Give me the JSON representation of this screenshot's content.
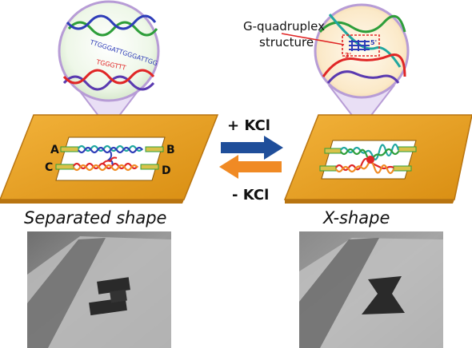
{
  "labels": {
    "plus_kcl": "+ KCl",
    "minus_kcl": "- KCl",
    "left_caption": "Separated shape",
    "right_caption": "X-shape",
    "gq_line1": "G-quadruplex",
    "gq_line2": "structure",
    "corner_a": "A",
    "corner_b": "B",
    "corner_c": "C",
    "corner_d": "D",
    "prime3": "3'",
    "prime5": "5'",
    "seq_top": "TTGGGATTGGGATTGG",
    "seq_bottom": "TGGGTTT"
  },
  "colors": {
    "frame_orange": "#E8A21E",
    "frame_edge": "#B87410",
    "arrow_blue": "#1F4E9A",
    "arrow_orange": "#F08A24",
    "strand_blue": "#2E3DB8",
    "strand_teal": "#20A7A0",
    "strand_red": "#E02626",
    "strand_green": "#2E9E3A",
    "callout_purple": "#B79CD6"
  }
}
